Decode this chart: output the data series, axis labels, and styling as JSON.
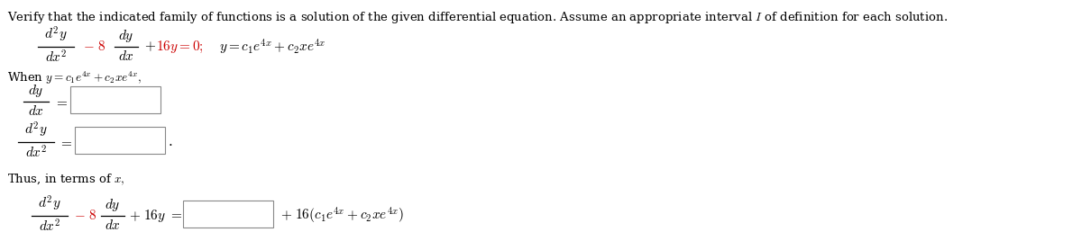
{
  "bg_color": "#ffffff",
  "text_color": "#000000",
  "red_color": "#cc0000",
  "header_fontsize": 9.5,
  "math_fontsize": 11,
  "box_facecolor": "#ffffff",
  "box_edgecolor": "#888888",
  "fig_width": 12.0,
  "fig_height": 2.68,
  "dpi": 100
}
